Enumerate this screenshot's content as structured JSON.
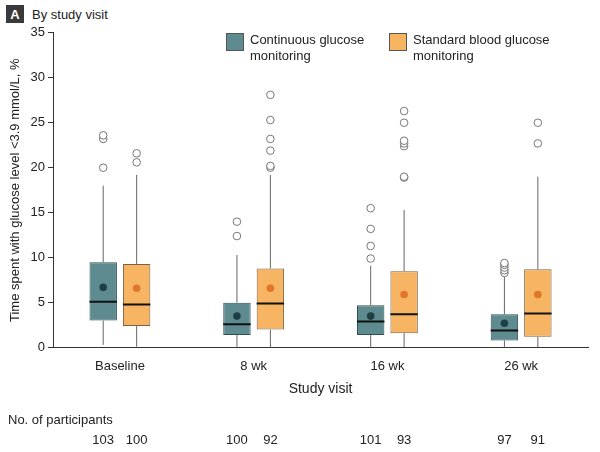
{
  "chart_data": {
    "type": "boxplot",
    "panel_label": "A",
    "title": "By study visit",
    "x_label": "Study visit",
    "y_label": "Time spent with glucose level <3.9 mmol/L, %",
    "categories": [
      "Baseline",
      "8 wk",
      "16 wk",
      "26 wk"
    ],
    "participants_label": "No. of participants",
    "series": [
      {
        "name": "Continuous glucose monitoring",
        "color": "#5e8b8f",
        "whisker_low": [
          0.3,
          0,
          0,
          0
        ],
        "q1": [
          3.0,
          1.4,
          1.4,
          0.8
        ],
        "median": [
          5.1,
          2.6,
          2.9,
          1.9
        ],
        "q3": [
          9.5,
          5.0,
          4.7,
          3.7
        ],
        "whisker_high": [
          18.0,
          10.3,
          9.1,
          7.9
        ],
        "mean": [
          6.7,
          3.5,
          3.5,
          2.7
        ],
        "outliers": [
          [
            20.0,
            23.2,
            23.6
          ],
          [
            12.4,
            14.0
          ],
          [
            9.9,
            11.3,
            13.2,
            15.5
          ],
          [
            8.3,
            8.6,
            8.9,
            9.2,
            9.4
          ]
        ],
        "participants": [
          103,
          100,
          101,
          97
        ]
      },
      {
        "name": "Standard blood glucose monitoring",
        "color": "#f7b563",
        "whisker_low": [
          0.1,
          0,
          0,
          0
        ],
        "q1": [
          2.4,
          2.0,
          1.6,
          1.2
        ],
        "median": [
          4.8,
          4.9,
          3.7,
          3.8
        ],
        "q3": [
          9.3,
          8.8,
          8.5,
          8.7
        ],
        "whisker_high": [
          19.2,
          19.2,
          15.3,
          19.0
        ],
        "mean": [
          6.6,
          6.6,
          5.9,
          5.9
        ],
        "outliers": [
          [
            20.6,
            21.6
          ],
          [
            20.0,
            20.2,
            21.9,
            23.2,
            25.3,
            28.1
          ],
          [
            18.9,
            19.0,
            22.4,
            22.7,
            23.0,
            25.0,
            26.3
          ],
          [
            22.7,
            25.0
          ]
        ],
        "participants": [
          100,
          92,
          93,
          91
        ]
      }
    ],
    "ylim": [
      0,
      35
    ],
    "yticks": [
      0,
      5,
      10,
      15,
      20,
      25,
      30,
      35
    ],
    "grid": false,
    "legend": "top-right"
  }
}
